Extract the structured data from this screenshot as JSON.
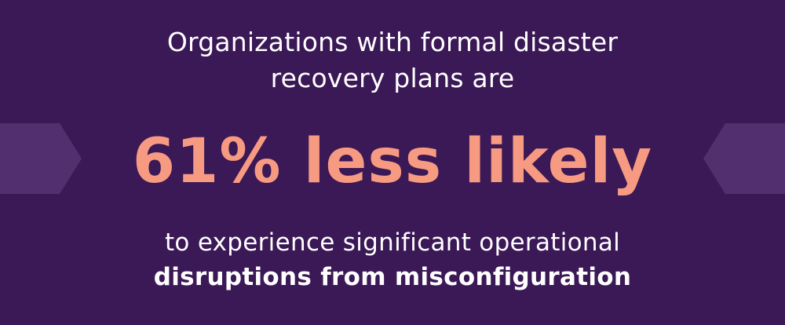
{
  "colors": {
    "background": "#3b1856",
    "accent": "#f79a82",
    "text": "#ffffff",
    "chevron": "#5a3475"
  },
  "stat": {
    "intro_line_1": "Organizations with formal disaster",
    "intro_line_2": "recovery plans are",
    "headline": "61% less likely",
    "outro_line_1": "to experience significant operational",
    "outro_line_2": "disruptions from misconfiguration"
  },
  "icons": {
    "left": "chevron-right-icon",
    "right": "chevron-left-icon"
  }
}
